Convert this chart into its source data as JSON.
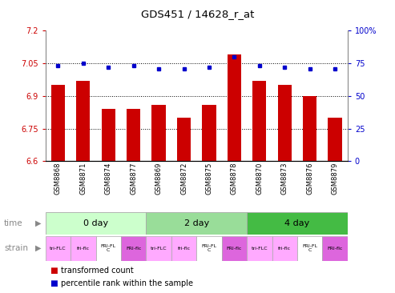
{
  "title": "GDS451 / 14628_r_at",
  "samples": [
    "GSM8868",
    "GSM8871",
    "GSM8874",
    "GSM8877",
    "GSM8869",
    "GSM8872",
    "GSM8875",
    "GSM8878",
    "GSM8870",
    "GSM8873",
    "GSM8876",
    "GSM8879"
  ],
  "bar_values": [
    6.95,
    6.97,
    6.84,
    6.84,
    6.86,
    6.8,
    6.86,
    7.09,
    6.97,
    6.95,
    6.9,
    6.8
  ],
  "dot_values": [
    73,
    75,
    72,
    73,
    71,
    71,
    72,
    80,
    73,
    72,
    71,
    71
  ],
  "ylim_left": [
    6.6,
    7.2
  ],
  "ylim_right": [
    0,
    100
  ],
  "yticks_left": [
    6.6,
    6.75,
    6.9,
    7.05,
    7.2
  ],
  "yticks_right": [
    0,
    25,
    50,
    75,
    100
  ],
  "ytick_labels_left": [
    "6.6",
    "6.75",
    "6.9",
    "7.05",
    "7.2"
  ],
  "ytick_labels_right": [
    "0",
    "25",
    "50",
    "75",
    "100%"
  ],
  "hlines": [
    6.75,
    6.9,
    7.05
  ],
  "bar_color": "#cc0000",
  "dot_color": "#0000cc",
  "time_groups": [
    {
      "label": "0 day",
      "start": 0,
      "end": 4,
      "color": "#ccffcc"
    },
    {
      "label": "2 day",
      "start": 4,
      "end": 8,
      "color": "#99dd99"
    },
    {
      "label": "4 day",
      "start": 8,
      "end": 12,
      "color": "#44bb44"
    }
  ],
  "strain_groups": [
    {
      "label": "tri-FLC",
      "color": "#ffaaff"
    },
    {
      "label": "fri-flc",
      "color": "#ffaaff"
    },
    {
      "label": "FRI-FL\nC",
      "color": "#ffffff"
    },
    {
      "label": "FRI-flc",
      "color": "#dd66dd"
    },
    {
      "label": "tri-FLC",
      "color": "#ffaaff"
    },
    {
      "label": "fri-flc",
      "color": "#ffaaff"
    },
    {
      "label": "FRI-FL\nC",
      "color": "#ffffff"
    },
    {
      "label": "FRI-flc",
      "color": "#dd66dd"
    },
    {
      "label": "tri-FLC",
      "color": "#ffaaff"
    },
    {
      "label": "fri-flc",
      "color": "#ffaaff"
    },
    {
      "label": "FRI-FL\nC",
      "color": "#ffffff"
    },
    {
      "label": "FRI-flc",
      "color": "#dd66dd"
    }
  ],
  "time_label": "time",
  "strain_label": "strain",
  "legend_bar_label": "transformed count",
  "legend_dot_label": "percentile rank within the sample",
  "tick_color_left": "#cc0000",
  "tick_color_right": "#0000cc",
  "label_color": "#888888"
}
